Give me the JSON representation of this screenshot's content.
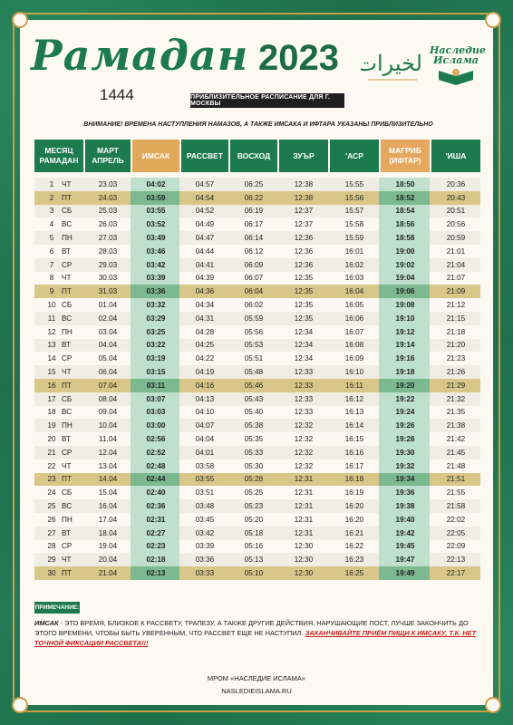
{
  "title": "Рамадан",
  "year": "2023",
  "hijri_year": "1444",
  "schedule_tag": "ПРИБЛИЗИТЕЛЬНОЕ РАСПИСАНИЕ ДЛЯ Г. МОСКВЫ",
  "logo_heritage": [
    "Наследие",
    "Ислама"
  ],
  "logo_arabic": "الخيرات",
  "warning": "ВНИМАНИЕ! ВРЕМЕНА НАСТУПЛЕНИЯ НАМАЗОВ, А ТАКЖЕ ИМСАКА И ИФТАРА УКАЗАНЫ ПРИБЛИЗИТЕЛЬНО",
  "headers": {
    "ramadan_day": [
      "МЕСЯЦ",
      "РАМАДАН"
    ],
    "date": [
      "МАРТ",
      "АПРЕЛЬ"
    ],
    "imsak": "ИМСАК",
    "fajr": "РАССВЕТ",
    "sunrise": "ВОСХОД",
    "zuhr": "ЗУЪР",
    "asr": "'АСР",
    "maghrib": [
      "МАГРИБ",
      "(ИФТАР)"
    ],
    "isha": "'ИША"
  },
  "rows": [
    {
      "n": "1",
      "d": "ЧТ",
      "date": "23.03",
      "imsak": "04:02",
      "fajr": "04:57",
      "sunrise": "06:25",
      "zuhr": "12:38",
      "asr": "15:55",
      "maghrib": "18:50",
      "isha": "20:36"
    },
    {
      "n": "2",
      "d": "ПТ",
      "date": "24.03",
      "imsak": "03:59",
      "fajr": "04:54",
      "sunrise": "06:22",
      "zuhr": "12:38",
      "asr": "15:56",
      "maghrib": "18:52",
      "isha": "20:43",
      "friday": true
    },
    {
      "n": "3",
      "d": "СБ",
      "date": "25.03",
      "imsak": "03:55",
      "fajr": "04:52",
      "sunrise": "06:19",
      "zuhr": "12:37",
      "asr": "15:57",
      "maghrib": "18:54",
      "isha": "20:51"
    },
    {
      "n": "4",
      "d": "ВС",
      "date": "26.03",
      "imsak": "03:52",
      "fajr": "04:49",
      "sunrise": "06:17",
      "zuhr": "12:37",
      "asr": "15:58",
      "maghrib": "18:56",
      "isha": "20:56"
    },
    {
      "n": "5",
      "d": "ПН",
      "date": "27.03",
      "imsak": "03:49",
      "fajr": "04:47",
      "sunrise": "06:14",
      "zuhr": "12:36",
      "asr": "15:59",
      "maghrib": "18:58",
      "isha": "20:59"
    },
    {
      "n": "6",
      "d": "ВТ",
      "date": "28.03",
      "imsak": "03:46",
      "fajr": "04:44",
      "sunrise": "06:12",
      "zuhr": "12:36",
      "asr": "16:01",
      "maghrib": "19:00",
      "isha": "21:01"
    },
    {
      "n": "7",
      "d": "СР",
      "date": "29.03",
      "imsak": "03:42",
      "fajr": "04:41",
      "sunrise": "06:09",
      "zuhr": "12:36",
      "asr": "16:02",
      "maghrib": "19:02",
      "isha": "21:04"
    },
    {
      "n": "8",
      "d": "ЧТ",
      "date": "30.03",
      "imsak": "03:39",
      "fajr": "04:39",
      "sunrise": "06:07",
      "zuhr": "12:35",
      "asr": "16:03",
      "maghrib": "19:04",
      "isha": "21:07"
    },
    {
      "n": "9",
      "d": "ПТ",
      "date": "31.03",
      "imsak": "03:36",
      "fajr": "04:36",
      "sunrise": "06:04",
      "zuhr": "12:35",
      "asr": "16:04",
      "maghrib": "19:06",
      "isha": "21:09",
      "friday": true
    },
    {
      "n": "10",
      "d": "СБ",
      "date": "01.04",
      "imsak": "03:32",
      "fajr": "04:34",
      "sunrise": "06:02",
      "zuhr": "12:35",
      "asr": "16:05",
      "maghrib": "19:08",
      "isha": "21:12"
    },
    {
      "n": "11",
      "d": "ВС",
      "date": "02.04",
      "imsak": "03:29",
      "fajr": "04:31",
      "sunrise": "05:59",
      "zuhr": "12:35",
      "asr": "16:06",
      "maghrib": "19:10",
      "isha": "21:15"
    },
    {
      "n": "12",
      "d": "ПН",
      "date": "03.04",
      "imsak": "03:25",
      "fajr": "04:28",
      "sunrise": "05:56",
      "zuhr": "12:34",
      "asr": "16:07",
      "maghrib": "19:12",
      "isha": "21:18"
    },
    {
      "n": "13",
      "d": "ВТ",
      "date": "04.04",
      "imsak": "03:22",
      "fajr": "04:25",
      "sunrise": "05:53",
      "zuhr": "12:34",
      "asr": "16:08",
      "maghrib": "19:14",
      "isha": "21:20"
    },
    {
      "n": "14",
      "d": "СР",
      "date": "05.04",
      "imsak": "03:19",
      "fajr": "04:22",
      "sunrise": "05:51",
      "zuhr": "12:34",
      "asr": "16:09",
      "maghrib": "19:16",
      "isha": "21:23"
    },
    {
      "n": "15",
      "d": "ЧТ",
      "date": "06.04",
      "imsak": "03:15",
      "fajr": "04:19",
      "sunrise": "05:48",
      "zuhr": "12:33",
      "asr": "16:10",
      "maghrib": "19:18",
      "isha": "21:26"
    },
    {
      "n": "16",
      "d": "ПТ",
      "date": "07.04",
      "imsak": "03:11",
      "fajr": "04:16",
      "sunrise": "05:46",
      "zuhr": "12:33",
      "asr": "16:11",
      "maghrib": "19:20",
      "isha": "21:29",
      "friday": true
    },
    {
      "n": "17",
      "d": "СБ",
      "date": "08.04",
      "imsak": "03:07",
      "fajr": "04:13",
      "sunrise": "05:43",
      "zuhr": "12:33",
      "asr": "16:12",
      "maghrib": "19:22",
      "isha": "21:32"
    },
    {
      "n": "18",
      "d": "ВС",
      "date": "09.04",
      "imsak": "03:03",
      "fajr": "04:10",
      "sunrise": "05:40",
      "zuhr": "12:33",
      "asr": "16:13",
      "maghrib": "19:24",
      "isha": "21:35"
    },
    {
      "n": "19",
      "d": "ПН",
      "date": "10.04",
      "imsak": "03:00",
      "fajr": "04:07",
      "sunrise": "05:38",
      "zuhr": "12:32",
      "asr": "16:14",
      "maghrib": "19:26",
      "isha": "21:38"
    },
    {
      "n": "20",
      "d": "ВТ",
      "date": "11.04",
      "imsak": "02:56",
      "fajr": "04:04",
      "sunrise": "05:35",
      "zuhr": "12:32",
      "asr": "16:15",
      "maghrib": "19:28",
      "isha": "21:42"
    },
    {
      "n": "21",
      "d": "СР",
      "date": "12.04",
      "imsak": "02:52",
      "fajr": "04:01",
      "sunrise": "05:33",
      "zuhr": "12:32",
      "asr": "16:16",
      "maghrib": "19:30",
      "isha": "21:45"
    },
    {
      "n": "22",
      "d": "ЧТ",
      "date": "13.04",
      "imsak": "02:48",
      "fajr": "03:58",
      "sunrise": "05:30",
      "zuhr": "12:32",
      "asr": "16:17",
      "maghrib": "19:32",
      "isha": "21:48"
    },
    {
      "n": "23",
      "d": "ПТ",
      "date": "14.04",
      "imsak": "02:44",
      "fajr": "03:55",
      "sunrise": "05:28",
      "zuhr": "12:31",
      "asr": "16:18",
      "maghrib": "19:34",
      "isha": "21:51",
      "friday": true
    },
    {
      "n": "24",
      "d": "СБ",
      "date": "15.04",
      "imsak": "02:40",
      "fajr": "03:51",
      "sunrise": "05:25",
      "zuhr": "12:31",
      "asr": "16:19",
      "maghrib": "19:36",
      "isha": "21:55"
    },
    {
      "n": "25",
      "d": "ВС",
      "date": "16.04",
      "imsak": "02:36",
      "fajr": "03:48",
      "sunrise": "05:23",
      "zuhr": "12:31",
      "asr": "16:20",
      "maghrib": "19:38",
      "isha": "21:58"
    },
    {
      "n": "26",
      "d": "ПН",
      "date": "17.04",
      "imsak": "02:31",
      "fajr": "03:45",
      "sunrise": "05:20",
      "zuhr": "12:31",
      "asr": "16:20",
      "maghrib": "19:40",
      "isha": "22:02"
    },
    {
      "n": "27",
      "d": "ВТ",
      "date": "18.04",
      "imsak": "02:27",
      "fajr": "03:42",
      "sunrise": "05:18",
      "zuhr": "12:31",
      "asr": "16:21",
      "maghrib": "19:42",
      "isha": "22:05"
    },
    {
      "n": "28",
      "d": "СР",
      "date": "19.04",
      "imsak": "02:23",
      "fajr": "03:39",
      "sunrise": "05:16",
      "zuhr": "12:30",
      "asr": "16:22",
      "maghrib": "19:45",
      "isha": "22:09"
    },
    {
      "n": "29",
      "d": "ЧТ",
      "date": "20.04",
      "imsak": "02:18",
      "fajr": "03:36",
      "sunrise": "05:13",
      "zuhr": "12:30",
      "asr": "16:23",
      "maghrib": "19:47",
      "isha": "22:13"
    },
    {
      "n": "30",
      "d": "ПТ",
      "date": "21.04",
      "imsak": "02:13",
      "fajr": "03:33",
      "sunrise": "05:10",
      "zuhr": "12:30",
      "asr": "16:25",
      "maghrib": "19:49",
      "isha": "22:17",
      "friday": true
    }
  ],
  "note_label": "ПРИМЕЧАНИЕ:",
  "note": {
    "term": "ИМСАК",
    "text": " - ЭТО ВРЕМЯ, БЛИЗКОЕ К РАССВЕТУ, ТРАПЕЗУ, А ТАКЖЕ ДРУГИЕ ДЕЙСТВИЯ, НАРУШАЮЩИЕ ПОСТ, ЛУЧШЕ ЗАКОНЧИТЬ ДО ЭТОГО ВРЕМЕНИ, ЧТОБЫ БЫТЬ УВЕРЕННЫМ, ЧТО РАССВЕТ ЕЩЕ НЕ НАСТУПИЛ. ",
    "warning": "ЗАКАНЧИВАЙТЕ ПРИЁМ ПИЩИ К ИМСАКУ, Т.К. НЕТ ТОЧНОЙ ФИКСАЦИИ РАССВЕТА!!!"
  },
  "footer": [
    "МРОМ «НАСЛЕДИЕ ИСЛАМА»",
    "NASLEDIEISLAMA.RU"
  ]
}
